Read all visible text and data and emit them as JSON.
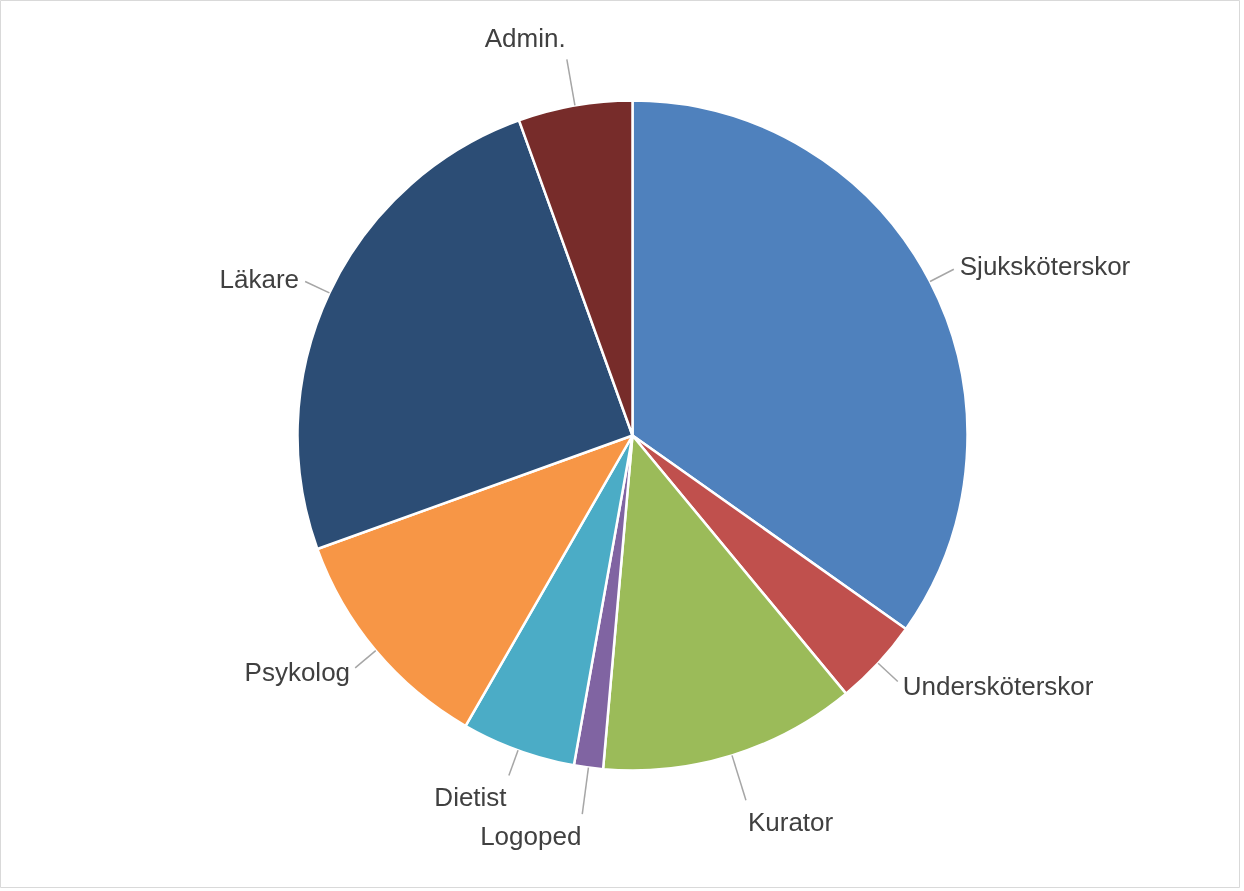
{
  "chart_data": {
    "type": "pie",
    "categories": [
      "Sjuksköterskor",
      "Undersköterskor",
      "Kurator",
      "Logoped",
      "Dietist",
      "Psykolog",
      "Läkare",
      "Admin."
    ],
    "values": [
      34.8,
      4.2,
      12.4,
      1.4,
      5.5,
      11.2,
      25.0,
      5.5
    ],
    "colors": [
      "#4f81bd",
      "#c0504d",
      "#9bbb59",
      "#8064a2",
      "#4bacc6",
      "#f79646",
      "#2c4d75",
      "#772c2a"
    ],
    "legend": false
  }
}
